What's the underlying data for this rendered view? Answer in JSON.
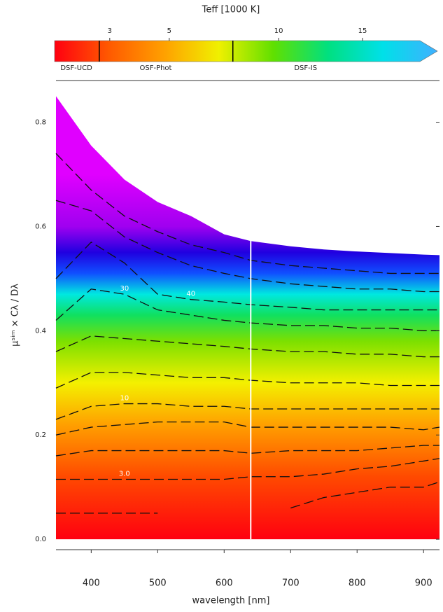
{
  "chart_data": {
    "type": "filled-contour",
    "xlabel": "wavelength [nm]",
    "ylabel": "μˢⁱᵐ × Cλ / Dλ",
    "xlim": [
      347,
      924
    ],
    "ylim": [
      -0.02,
      0.88
    ],
    "xticks": [
      400,
      500,
      600,
      700,
      800,
      900
    ],
    "yticks": [
      {
        "value": 0,
        "label": "0.0"
      },
      {
        "value": 0.2,
        "label": "0.2"
      },
      {
        "value": 0.4,
        "label": "0.4"
      },
      {
        "value": 0.6,
        "label": "0.6"
      },
      {
        "value": 0.8,
        "label": "0.8"
      }
    ],
    "vline": 640,
    "x": [
      347,
      400,
      450,
      500,
      550,
      600,
      640,
      700,
      750,
      800,
      850,
      900,
      924
    ],
    "upper": [
      0.85,
      0.755,
      0.69,
      0.647,
      0.62,
      0.585,
      0.572,
      0.562,
      0.556,
      0.552,
      0.549,
      0.546,
      0.545
    ],
    "fill_stops": [
      {
        "value": 0.0,
        "color": "#ff0010"
      },
      {
        "value": 0.12,
        "color": "#ff4a00"
      },
      {
        "value": 0.22,
        "color": "#ffa000"
      },
      {
        "value": 0.3,
        "color": "#f4f000"
      },
      {
        "value": 0.38,
        "color": "#7ce000"
      },
      {
        "value": 0.43,
        "color": "#10e060"
      },
      {
        "value": 0.47,
        "color": "#00e8e0"
      },
      {
        "value": 0.51,
        "color": "#1050ff"
      },
      {
        "value": 0.55,
        "color": "#2000e0"
      },
      {
        "value": 0.6,
        "color": "#a000f0"
      },
      {
        "value": 0.7,
        "color": "#e000ff"
      }
    ],
    "contours": [
      {
        "values": [
          0.74,
          0.67,
          0.62,
          0.59,
          0.565,
          0.55,
          0.535,
          0.525,
          0.52,
          0.515,
          0.51,
          0.51,
          0.51
        ]
      },
      {
        "values": [
          0.65,
          0.63,
          0.58,
          0.55,
          0.525,
          0.51,
          0.5,
          0.49,
          0.485,
          0.48,
          0.48,
          0.475,
          0.475
        ]
      },
      {
        "label": "40",
        "values": [
          0.5,
          0.57,
          0.53,
          0.47,
          0.46,
          0.455,
          0.45,
          0.445,
          0.44,
          0.44,
          0.44,
          0.44,
          0.44
        ]
      },
      {
        "label": "30",
        "values": [
          0.42,
          0.48,
          0.47,
          0.44,
          0.43,
          0.42,
          0.415,
          0.41,
          0.41,
          0.405,
          0.405,
          0.4,
          0.4
        ]
      },
      {
        "values": [
          0.36,
          0.39,
          0.385,
          0.38,
          0.375,
          0.37,
          0.365,
          0.36,
          0.36,
          0.355,
          0.355,
          0.35,
          0.35
        ]
      },
      {
        "values": [
          0.29,
          0.32,
          0.32,
          0.315,
          0.31,
          0.31,
          0.305,
          0.3,
          0.3,
          0.3,
          0.295,
          0.295,
          0.295
        ]
      },
      {
        "label": "10",
        "values": [
          0.23,
          0.255,
          0.26,
          0.26,
          0.255,
          0.255,
          0.25,
          0.25,
          0.25,
          0.25,
          0.25,
          0.25,
          0.25
        ]
      },
      {
        "values": [
          0.2,
          0.215,
          0.22,
          0.225,
          0.225,
          0.225,
          0.215,
          0.215,
          0.215,
          0.215,
          0.215,
          0.21,
          0.215
        ]
      },
      {
        "values": [
          0.16,
          0.17,
          0.17,
          0.17,
          0.17,
          0.17,
          0.165,
          0.17,
          0.17,
          0.17,
          0.175,
          0.18,
          0.18
        ]
      },
      {
        "label": "3.0",
        "values": [
          0.115,
          0.115,
          0.115,
          0.115,
          0.115,
          0.115,
          0.12,
          0.12,
          0.125,
          0.135,
          0.14,
          0.15,
          0.155
        ]
      },
      {
        "values": [
          0.05,
          0.05,
          0.05,
          0.05,
          null,
          null,
          null,
          0.06,
          0.08,
          0.09,
          0.1,
          0.1,
          0.11
        ]
      }
    ],
    "colorbar": {
      "title": "Teff [1000 K]",
      "scale": "sqrt",
      "clim": [
        1.6,
        19
      ],
      "ticks": [
        3,
        5,
        10,
        15
      ],
      "colors": [
        "#ff0010",
        "#ff5a00",
        "#ffa000",
        "#f0f000",
        "#60e000",
        "#00e080",
        "#00e0e8",
        "#40b0ff"
      ],
      "markers": [
        2.7,
        7.7
      ],
      "regions": [
        {
          "label": "DSF-UCD",
          "value": 2.1
        },
        {
          "label": "OSF-Phot",
          "value": 4.5
        },
        {
          "label": "DSF-IS",
          "value": 11.5
        }
      ]
    }
  }
}
